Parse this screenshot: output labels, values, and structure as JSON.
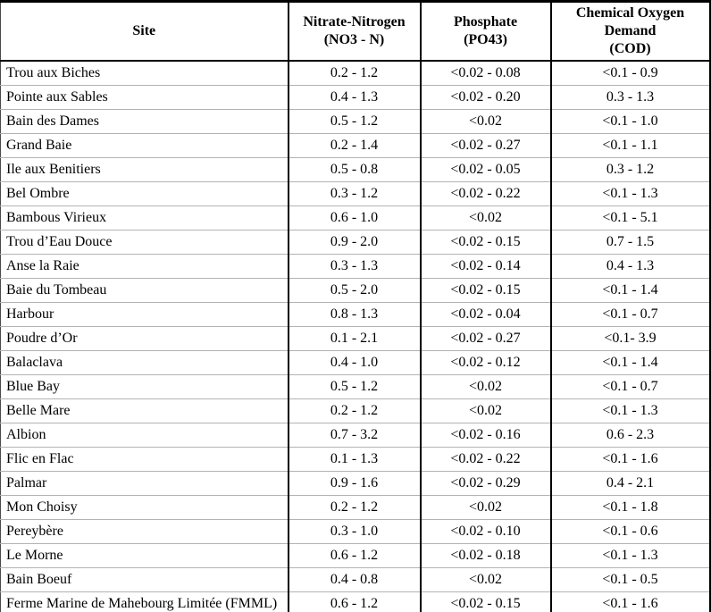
{
  "table": {
    "columns": [
      {
        "id": "site",
        "label": "Site"
      },
      {
        "id": "nitrate",
        "label": "Nitrate-Nitrogen\n(NO3 - N)"
      },
      {
        "id": "phosphate",
        "label": "Phosphate\n(PO43)"
      },
      {
        "id": "cod",
        "label": "Chemical Oxygen\nDemand\n(COD)"
      }
    ],
    "rows": [
      {
        "site": "Trou aux Biches",
        "nitrate": "0.2 - 1.2",
        "phosphate": "<0.02 - 0.08",
        "cod": "<0.1 - 0.9"
      },
      {
        "site": "Pointe aux Sables",
        "nitrate": "0.4 - 1.3",
        "phosphate": "<0.02 - 0.20",
        "cod": "0.3 - 1.3"
      },
      {
        "site": "Bain des Dames",
        "nitrate": "0.5 - 1.2",
        "phosphate": "<0.02",
        "cod": "<0.1 - 1.0"
      },
      {
        "site": "Grand Baie",
        "nitrate": "0.2 - 1.4",
        "phosphate": "<0.02 - 0.27",
        "cod": "<0.1 - 1.1"
      },
      {
        "site": "Ile aux Benitiers",
        "nitrate": "0.5 - 0.8",
        "phosphate": "<0.02 - 0.05",
        "cod": "0.3 - 1.2"
      },
      {
        "site": "Bel Ombre",
        "nitrate": "0.3 - 1.2",
        "phosphate": "<0.02 - 0.22",
        "cod": "<0.1 - 1.3"
      },
      {
        "site": "Bambous Virieux",
        "nitrate": "0.6 - 1.0",
        "phosphate": "<0.02",
        "cod": "<0.1 - 5.1"
      },
      {
        "site": "Trou d’Eau Douce",
        "nitrate": "0.9 - 2.0",
        "phosphate": "<0.02 - 0.15",
        "cod": "0.7 - 1.5"
      },
      {
        "site": "Anse la Raie",
        "nitrate": "0.3 - 1.3",
        "phosphate": "<0.02 - 0.14",
        "cod": "0.4 - 1.3"
      },
      {
        "site": "Baie du Tombeau",
        "nitrate": "0.5 - 2.0",
        "phosphate": "<0.02 - 0.15",
        "cod": "<0.1 - 1.4"
      },
      {
        "site": "Harbour",
        "nitrate": "0.8 - 1.3",
        "phosphate": "<0.02 - 0.04",
        "cod": "<0.1 - 0.7"
      },
      {
        "site": "Poudre d’Or",
        "nitrate": "0.1 - 2.1",
        "phosphate": "<0.02 - 0.27",
        "cod": "<0.1- 3.9"
      },
      {
        "site": "Balaclava",
        "nitrate": "0.4 - 1.0",
        "phosphate": "<0.02 - 0.12",
        "cod": "<0.1 - 1.4"
      },
      {
        "site": "Blue Bay",
        "nitrate": "0.5 - 1.2",
        "phosphate": "<0.02",
        "cod": "<0.1 - 0.7"
      },
      {
        "site": "Belle Mare",
        "nitrate": "0.2 - 1.2",
        "phosphate": "<0.02",
        "cod": "<0.1 - 1.3"
      },
      {
        "site": "Albion",
        "nitrate": "0.7 - 3.2",
        "phosphate": "<0.02 - 0.16",
        "cod": "0.6 - 2.3"
      },
      {
        "site": "Flic en Flac",
        "nitrate": "0.1 - 1.3",
        "phosphate": "<0.02 - 0.22",
        "cod": "<0.1 - 1.6"
      },
      {
        "site": "Palmar",
        "nitrate": "0.9 - 1.6",
        "phosphate": "<0.02 - 0.29",
        "cod": "0.4 - 2.1"
      },
      {
        "site": "Mon Choisy",
        "nitrate": "0.2 - 1.2",
        "phosphate": "<0.02",
        "cod": "<0.1 - 1.8"
      },
      {
        "site": "Pereybère",
        "nitrate": "0.3 - 1.0",
        "phosphate": "<0.02 - 0.10",
        "cod": "<0.1 - 0.6"
      },
      {
        "site": "Le Morne",
        "nitrate": "0.6 - 1.2",
        "phosphate": "<0.02 - 0.18",
        "cod": "<0.1 - 1.3"
      },
      {
        "site": "Bain Boeuf",
        "nitrate": "0.4 - 0.8",
        "phosphate": "<0.02",
        "cod": "<0.1 - 0.5"
      },
      {
        "site": "Ferme Marine de Mahebourg Limitée (FMML)",
        "nitrate": "0.6 - 1.2",
        "phosphate": "<0.02 - 0.15",
        "cod": "<0.1 - 1.6"
      }
    ]
  },
  "colors": {
    "text": "#000000",
    "background": "#ffffff",
    "outer_border": "#000000",
    "column_divider": "#000000",
    "row_divider": "#b3b3b3"
  }
}
